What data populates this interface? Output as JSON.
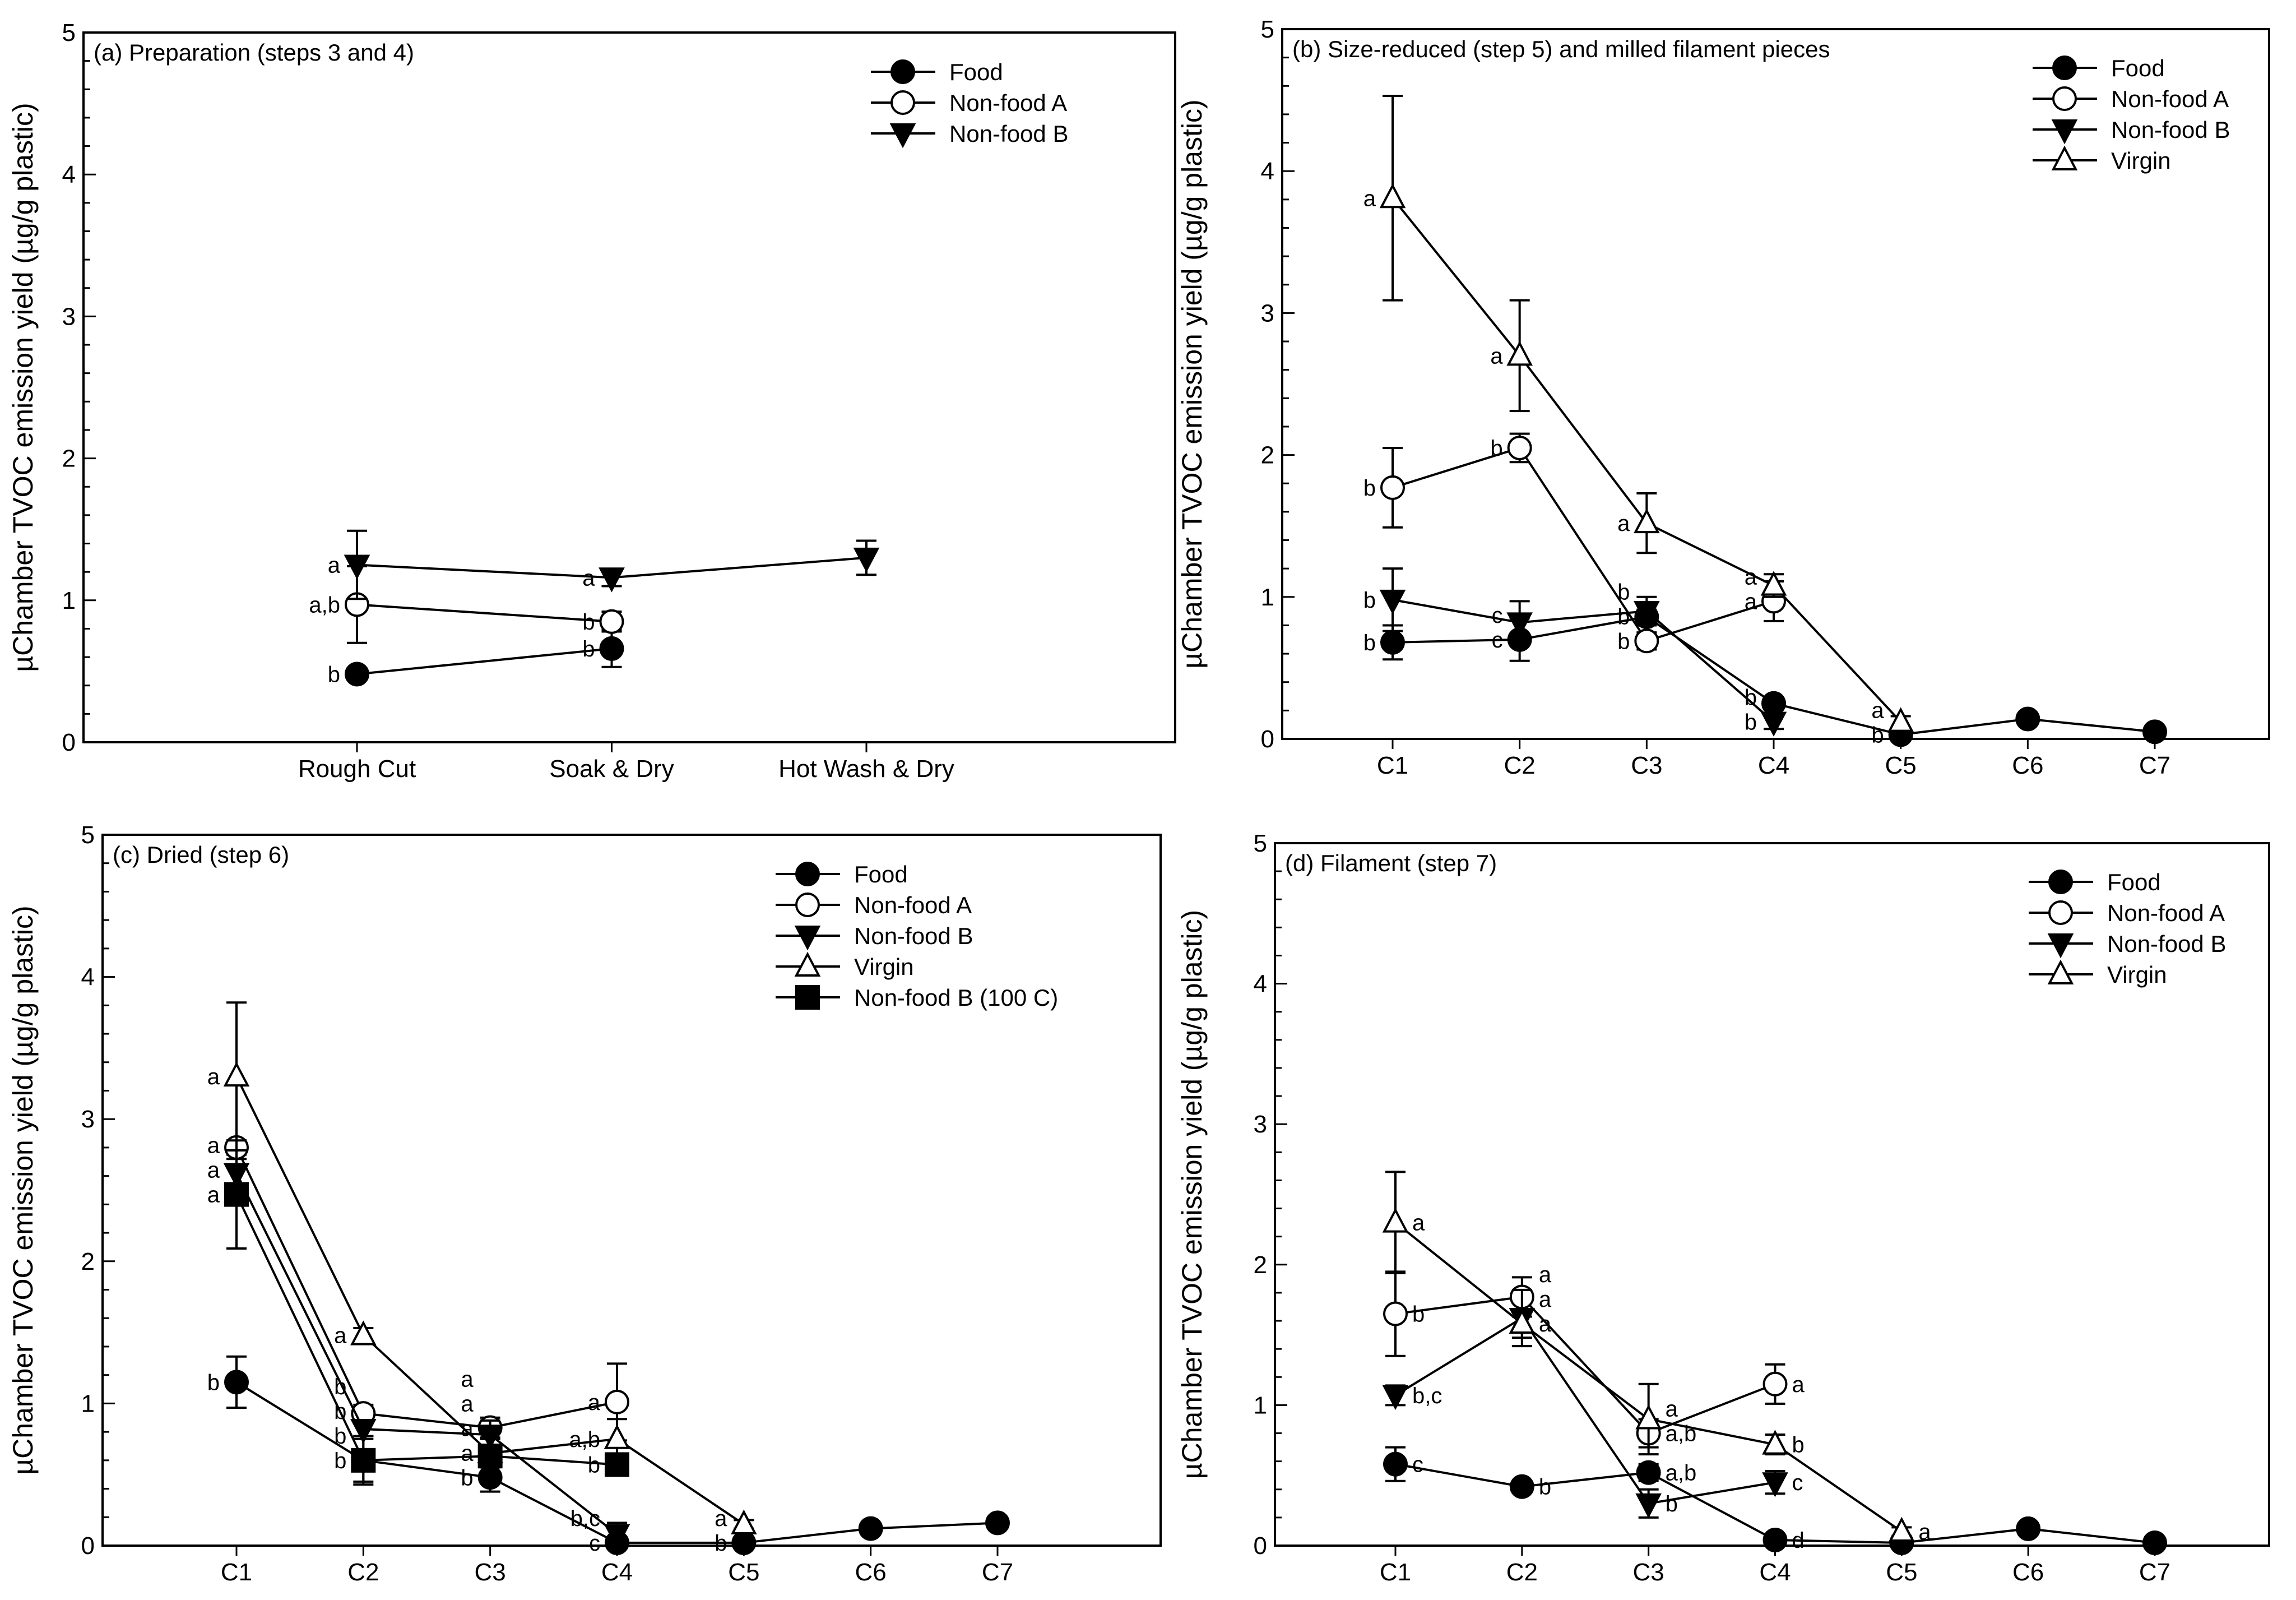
{
  "chart_data": [
    {
      "type": "line",
      "title": "(a) Preparation (steps 3 and 4)",
      "ylabel": "µChamber TVOC emission yield (µg/g plastic)",
      "xlabel": "",
      "ylim": [
        0,
        5
      ],
      "yticks": [
        "0",
        "1",
        "2",
        "3",
        "4",
        "5"
      ],
      "categories": [
        "Rough Cut",
        "Soak & Dry",
        "Hot Wash & Dry"
      ],
      "legend_position": "top-right",
      "series": [
        {
          "name": "Food",
          "marker": "filled-circle",
          "values": [
            0.48,
            0.66,
            null
          ],
          "errors": [
            0.04,
            0.13,
            null
          ],
          "letters": [
            "b",
            "b",
            null
          ],
          "letter_side": [
            "left",
            "left",
            null
          ]
        },
        {
          "name": "Non-food A",
          "marker": "open-circle",
          "values": [
            0.97,
            0.85,
            null
          ],
          "errors": [
            0.27,
            0.07,
            null
          ],
          "letters": [
            "a,b",
            "b",
            null
          ],
          "letter_side": [
            "left",
            "left",
            null
          ]
        },
        {
          "name": "Non-food B",
          "marker": "filled-triangle-down",
          "values": [
            1.25,
            1.16,
            1.3
          ],
          "errors": [
            0.24,
            0.06,
            0.12
          ],
          "letters": [
            "a",
            "a",
            null
          ],
          "letter_side": [
            "left",
            "left",
            null
          ]
        }
      ]
    },
    {
      "type": "line",
      "title": "(b) Size-reduced (step 5) and milled filament pieces",
      "ylabel": "µChamber TVOC emission yield (µg/g plastic)",
      "xlabel": "",
      "ylim": [
        0,
        5
      ],
      "yticks": [
        "0",
        "1",
        "2",
        "3",
        "4",
        "5"
      ],
      "categories": [
        "C1",
        "C2",
        "C3",
        "C4",
        "C5",
        "C6",
        "C7"
      ],
      "legend_position": "top-right",
      "series": [
        {
          "name": "Food",
          "marker": "filled-circle",
          "values": [
            0.68,
            0.7,
            0.86,
            0.25,
            0.03,
            0.14,
            0.05
          ],
          "errors": [
            0.12,
            0.15,
            0.05,
            0.03,
            0.02,
            0.03,
            0.02
          ],
          "letters": [
            "b",
            "c",
            "b",
            "b",
            "b",
            null,
            null
          ],
          "letter_side": [
            "left",
            "left",
            "left",
            "left",
            "left",
            null,
            null
          ]
        },
        {
          "name": "Non-food A",
          "marker": "open-circle",
          "values": [
            1.77,
            2.05,
            0.69,
            0.97,
            null,
            null,
            null
          ],
          "errors": [
            0.28,
            0.1,
            0.06,
            0.14,
            null,
            null,
            null
          ],
          "letters": [
            "b",
            "b",
            "b",
            "a",
            null,
            null,
            null
          ],
          "letter_side": [
            "left",
            "left",
            "left",
            "left",
            null,
            null,
            null
          ]
        },
        {
          "name": "Non-food B",
          "marker": "filled-triangle-down",
          "values": [
            0.98,
            0.82,
            0.9,
            0.12,
            null,
            null,
            null
          ],
          "errors": [
            0.22,
            0.15,
            0.1,
            0.05,
            null,
            null,
            null
          ],
          "letters": [
            "b",
            "c",
            "b",
            "b",
            null,
            null,
            null
          ],
          "letter_side": [
            "left",
            "left",
            "left",
            "left",
            null,
            null,
            null
          ]
        },
        {
          "name": "Virgin",
          "marker": "open-triangle-up",
          "values": [
            3.81,
            2.7,
            1.52,
            1.08,
            0.12,
            null,
            null
          ],
          "errors": [
            0.72,
            0.39,
            0.21,
            0.08,
            0.04,
            null,
            null
          ],
          "letters": [
            "a",
            "a",
            "a",
            "a",
            "a",
            null,
            null
          ],
          "letter_side": [
            "left",
            "left",
            "left",
            "left",
            "left",
            null,
            null
          ]
        }
      ]
    },
    {
      "type": "line",
      "title": "(c) Dried (step 6)",
      "ylabel": "µChamber TVOC emission yield (µg/g plastic)",
      "xlabel": "",
      "ylim": [
        0,
        5
      ],
      "yticks": [
        "0",
        "1",
        "2",
        "3",
        "4",
        "5"
      ],
      "categories": [
        "C1",
        "C2",
        "C3",
        "C4",
        "C5",
        "C6",
        "C7"
      ],
      "legend_position": "top-right",
      "series": [
        {
          "name": "Food",
          "marker": "filled-circle",
          "values": [
            1.15,
            0.6,
            0.48,
            0.02,
            0.02,
            0.12,
            0.16
          ],
          "errors": [
            0.18,
            0.15,
            0.1,
            0.02,
            0.01,
            0.02,
            0.02
          ],
          "letters": [
            "b",
            "b",
            "b",
            "c",
            "b",
            null,
            null
          ],
          "letter_side": [
            "left",
            "left",
            "left",
            "left",
            "left",
            null,
            null
          ]
        },
        {
          "name": "Non-food A",
          "marker": "open-circle",
          "values": [
            2.8,
            0.93,
            0.83,
            1.01,
            null,
            null,
            null
          ],
          "errors": [
            0.05,
            0.06,
            0.07,
            0.27,
            null,
            null,
            null
          ],
          "letters": [
            "a",
            "b",
            "a",
            "a",
            null,
            null,
            null
          ],
          "letter_side": [
            "left",
            "left",
            "left",
            "left",
            null,
            null,
            null
          ]
        },
        {
          "name": "Non-food B",
          "marker": "filled-triangle-down",
          "values": [
            2.62,
            0.82,
            0.78,
            0.08,
            null,
            null,
            null
          ],
          "errors": [
            0.1,
            0.05,
            0.1,
            0.08,
            null,
            null,
            null
          ],
          "letters": [
            "a",
            "b",
            "a",
            "b,c",
            null,
            null,
            null
          ],
          "letter_side": [
            "left",
            "left",
            "left",
            "left",
            null,
            null,
            null
          ]
        },
        {
          "name": "Virgin",
          "marker": "open-triangle-up",
          "values": [
            3.3,
            1.48,
            0.65,
            0.75,
            0.15,
            null,
            null
          ],
          "errors": [
            0.52,
            0.05,
            0.1,
            0.14,
            0.03,
            null,
            null
          ],
          "letters": [
            "a",
            "a",
            "a",
            "a,b",
            "a",
            null,
            null
          ],
          "letter_side": [
            "left",
            "left",
            "left",
            "left",
            "left",
            null,
            null
          ]
        },
        {
          "name": "Non-food B (100 C)",
          "marker": "filled-square",
          "values": [
            2.47,
            0.6,
            0.63,
            0.57,
            null,
            null,
            null
          ],
          "errors": [
            0.38,
            0.17,
            0.08,
            0.05,
            null,
            null,
            null
          ],
          "letters": [
            "a",
            "b",
            "a",
            "b",
            null,
            null,
            null
          ],
          "letter_side": [
            "left",
            "left",
            "left",
            "left",
            null,
            null,
            null
          ]
        }
      ]
    },
    {
      "type": "line",
      "title": "(d) Filament (step 7)",
      "ylabel": "µChamber TVOC emission yield (µg/g plastic)",
      "xlabel": "",
      "ylim": [
        0,
        5
      ],
      "yticks": [
        "0",
        "1",
        "2",
        "3",
        "4",
        "5"
      ],
      "categories": [
        "C1",
        "C2",
        "C3",
        "C4",
        "C5",
        "C6",
        "C7"
      ],
      "legend_position": "top-right",
      "series": [
        {
          "name": "Food",
          "marker": "filled-circle",
          "values": [
            0.58,
            0.42,
            0.52,
            0.04,
            0.02,
            0.12,
            0.02
          ],
          "errors": [
            0.12,
            0.04,
            0.06,
            0.02,
            0.01,
            0.02,
            0.01
          ],
          "letters": [
            "c",
            "b",
            "a,b",
            "d",
            null,
            null,
            null
          ],
          "letter_side": [
            "right",
            "right",
            "right",
            "right",
            null,
            null,
            null
          ]
        },
        {
          "name": "Non-food A",
          "marker": "open-circle",
          "values": [
            1.65,
            1.77,
            0.8,
            1.15,
            null,
            null,
            null
          ],
          "errors": [
            0.3,
            0.14,
            0.1,
            0.14,
            null,
            null,
            null
          ],
          "letters": [
            "b",
            "a",
            "a,b",
            "a",
            null,
            null,
            null
          ],
          "letter_side": [
            "right",
            "right",
            "right",
            "right",
            null,
            null,
            null
          ]
        },
        {
          "name": "Non-food B",
          "marker": "filled-triangle-down",
          "values": [
            1.07,
            1.62,
            0.3,
            0.45,
            null,
            null,
            null
          ],
          "errors": [
            0.07,
            0.2,
            0.1,
            0.08,
            null,
            null,
            null
          ],
          "letters": [
            "b,c",
            "a",
            "b",
            "c",
            null,
            null,
            null
          ],
          "letter_side": [
            "right",
            "right",
            "right",
            "right",
            null,
            null,
            null
          ]
        },
        {
          "name": "Virgin",
          "marker": "open-triangle-up",
          "values": [
            2.3,
            1.58,
            0.9,
            0.72,
            0.1,
            null,
            null
          ],
          "errors": [
            0.36,
            0.1,
            0.25,
            0.07,
            0.03,
            null,
            null
          ],
          "letters": [
            "a",
            "a",
            "a",
            "b",
            "a",
            null,
            null
          ],
          "letter_side": [
            "right",
            "right",
            "right",
            "right",
            "right",
            null,
            null
          ]
        }
      ]
    }
  ]
}
